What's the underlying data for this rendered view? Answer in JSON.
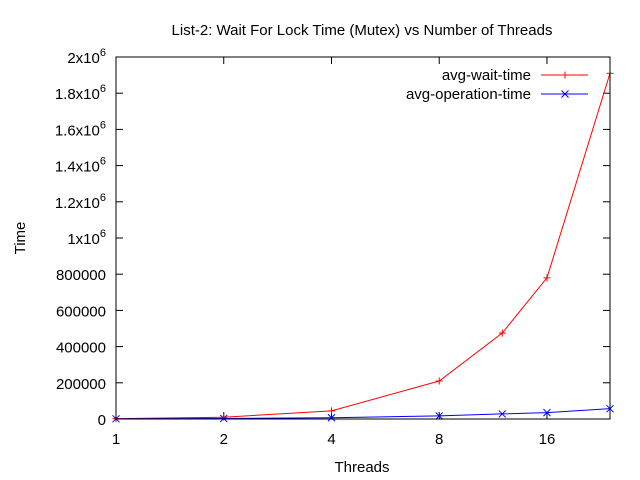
{
  "chart_data": {
    "type": "line",
    "title": "List-2: Wait For Lock Time (Mutex) vs Number of Threads",
    "xlabel": "Threads",
    "ylabel": "Time",
    "x_scale": "log2",
    "xlim": [
      1,
      24
    ],
    "ylim": [
      0,
      2000000
    ],
    "x_ticks": [
      {
        "value": 1,
        "label": "1"
      },
      {
        "value": 2,
        "label": "2"
      },
      {
        "value": 4,
        "label": "4"
      },
      {
        "value": 8,
        "label": "8"
      },
      {
        "value": 16,
        "label": "16"
      }
    ],
    "y_ticks": [
      {
        "value": 0,
        "label": "0",
        "sup": ""
      },
      {
        "value": 200000,
        "label": "200000",
        "sup": ""
      },
      {
        "value": 400000,
        "label": "400000",
        "sup": ""
      },
      {
        "value": 600000,
        "label": "600000",
        "sup": ""
      },
      {
        "value": 800000,
        "label": "800000",
        "sup": ""
      },
      {
        "value": 1000000,
        "label": "1x10",
        "sup": "6"
      },
      {
        "value": 1200000,
        "label": "1.2x10",
        "sup": "6"
      },
      {
        "value": 1400000,
        "label": "1.4x10",
        "sup": "6"
      },
      {
        "value": 1600000,
        "label": "1.6x10",
        "sup": "6"
      },
      {
        "value": 1800000,
        "label": "1.8x10",
        "sup": "6"
      },
      {
        "value": 2000000,
        "label": "2x10",
        "sup": "6"
      }
    ],
    "x": [
      1,
      2,
      4,
      8,
      12,
      16,
      24
    ],
    "series": [
      {
        "name": "avg-wait-time",
        "color": "#ff0000",
        "marker": "plus",
        "values": [
          2000,
          10000,
          45000,
          210000,
          475000,
          780000,
          1910000
        ]
      },
      {
        "name": "avg-operation-time",
        "color": "#0000ff",
        "marker": "cross",
        "values": [
          1000,
          3000,
          7000,
          17000,
          28000,
          35000,
          57000
        ]
      }
    ]
  }
}
